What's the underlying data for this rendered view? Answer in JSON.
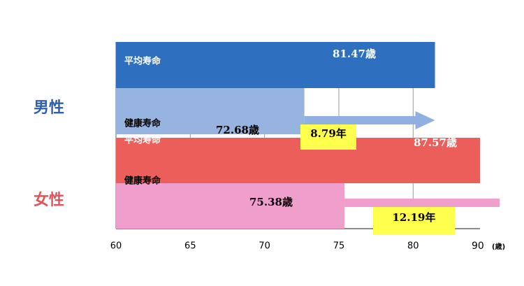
{
  "chart_data": {
    "type": "bar",
    "groups": [
      {
        "name": "男性",
        "color": "#2f5fb0",
        "series": [
          {
            "name": "平均寿命",
            "value": 81.47,
            "value_label": "81.47歳",
            "color": "#2f6fbf"
          },
          {
            "name": "健康寿命",
            "value": 72.68,
            "value_label": "72.68歳",
            "color": "#97b3df"
          }
        ],
        "gap": 8.79,
        "gap_label": "8.79年",
        "gap_color": "#8fb0e0"
      },
      {
        "name": "女性",
        "color": "#e0545a",
        "series": [
          {
            "name": "平均寿命",
            "value": 87.57,
            "value_label": "87.57歳",
            "color": "#ec5e5a"
          },
          {
            "name": "健康寿命",
            "value": 75.38,
            "value_label": "75.38歳",
            "color": "#f09ecb"
          }
        ],
        "gap": 12.19,
        "gap_label": "12.19年",
        "gap_color": "#f09ecb"
      }
    ],
    "xlim": [
      60,
      84.5
    ],
    "xticks": [
      60,
      65,
      70,
      75,
      80
    ],
    "x_end_label": "90",
    "x_unit": "(歳)",
    "grid": true
  }
}
